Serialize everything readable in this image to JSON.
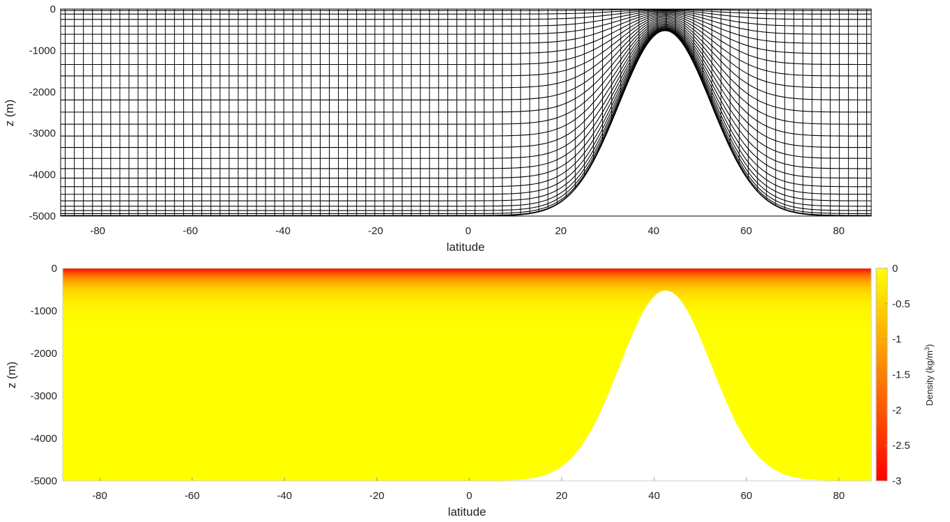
{
  "chart_data": [
    {
      "type": "line",
      "description_of_marks": "terrain-following sigma-coordinate model grid over a Gaussian seamount",
      "xlabel": "latitude",
      "ylabel": "z (m)",
      "xlim": [
        -88,
        87
      ],
      "ylim": [
        -5000,
        0
      ],
      "xticks": [
        -80,
        -60,
        -40,
        -20,
        0,
        20,
        40,
        60,
        80
      ],
      "yticks": [
        0,
        -1000,
        -2000,
        -3000,
        -4000,
        -5000
      ],
      "grid": false,
      "line_color": "#000000",
      "bathymetry": {
        "max_depth": 5000,
        "seamount_center_lat": 42.5,
        "seamount_top_depth": 520,
        "seamount_halfwidth_deg": 14
      },
      "meridional_grid_lines": 89,
      "vertical_levels": 26
    },
    {
      "type": "heatmap",
      "xlabel": "latitude",
      "ylabel": "z (m)",
      "xlim": [
        -88,
        87
      ],
      "ylim": [
        -5000,
        0
      ],
      "xticks": [
        -80,
        -60,
        -40,
        -20,
        0,
        20,
        40,
        60,
        80
      ],
      "yticks": [
        0,
        -1000,
        -2000,
        -3000,
        -4000,
        -5000
      ],
      "colorbar": {
        "label": "Density (kg/m",
        "label_sup": "3",
        "label_end": ")",
        "ticks": [
          0,
          -0.5,
          -1,
          -1.5,
          -2,
          -2.5,
          -3
        ],
        "tick_labels": [
          "0",
          "-0.5",
          "-1",
          "-1.5",
          "-2",
          "-2.5",
          "-3"
        ],
        "range": [
          -3,
          0
        ],
        "colormap": "autumn",
        "color_min": "#ff0000",
        "color_max": "#ffff00"
      },
      "density_profile": {
        "surface_value": -3,
        "deep_value": 0,
        "efolding_depth_m": 300
      },
      "masked_region": "seamount (white)"
    }
  ]
}
